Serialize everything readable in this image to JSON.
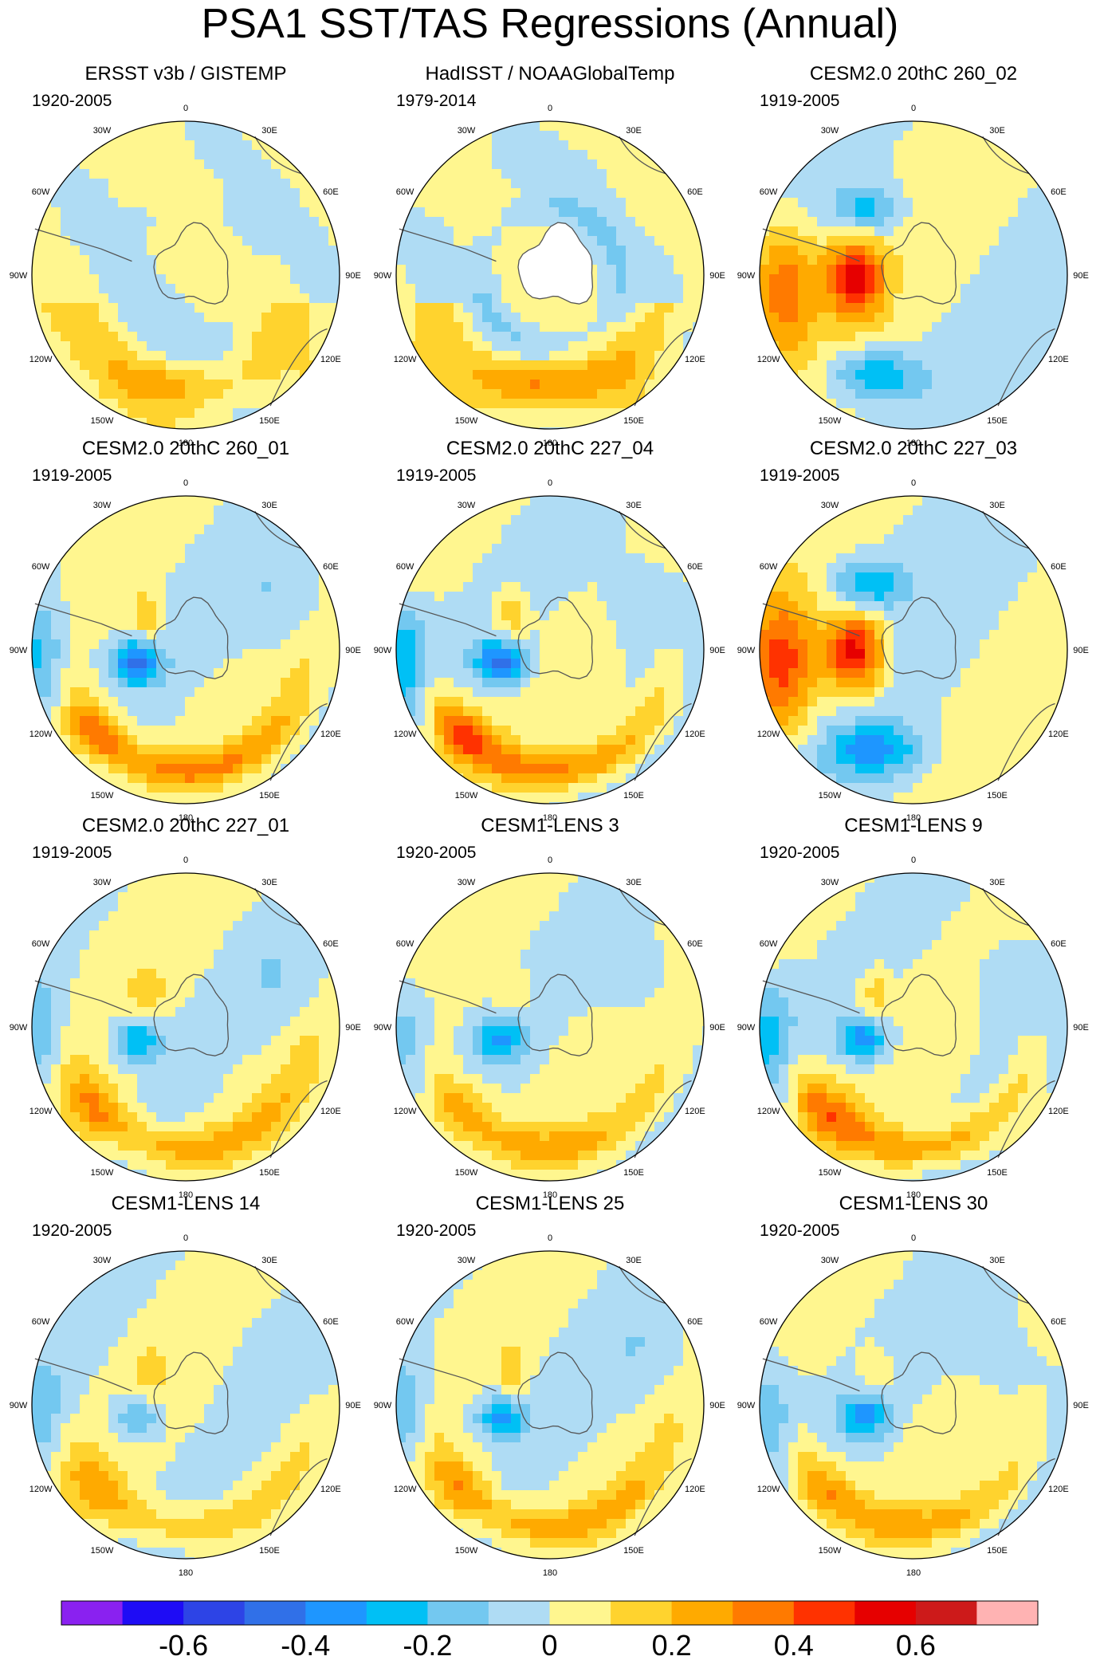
{
  "title": "PSA1 SST/TAS Regressions (Annual)",
  "chart_data": {
    "type": "polar-stereographic-contour-maps",
    "projection": "south polar stereographic",
    "longitude_labels": [
      "0",
      "30E",
      "60E",
      "90E",
      "120E",
      "150E",
      "180",
      "150W",
      "120W",
      "90W",
      "60W",
      "30W"
    ],
    "panels": [
      {
        "title": "ERSST v3b / GISTEMP",
        "period": "1920-2005",
        "pattern": "obs",
        "amplitude": 0.18,
        "missing_antarctic": true
      },
      {
        "title": "HadISST / NOAAGlobalTemp",
        "period": "1979-2014",
        "pattern": "obs",
        "amplitude": 0.3,
        "missing_antarctic": true,
        "pole_mask": true
      },
      {
        "title": "CESM2.0 20thC 260_02",
        "period": "1919-2005",
        "pattern": "strong_warm",
        "amplitude": 0.55
      },
      {
        "title": "CESM2.0 20thC 260_01",
        "period": "1919-2005",
        "pattern": "cool_core",
        "amplitude": 0.42
      },
      {
        "title": "CESM2.0 20thC 227_04",
        "period": "1919-2005",
        "pattern": "cool_core",
        "amplitude": 0.45
      },
      {
        "title": "CESM2.0 20thC 227_03",
        "period": "1919-2005",
        "pattern": "strong_warm",
        "amplitude": 0.6
      },
      {
        "title": "CESM2.0 20thC 227_01",
        "period": "1919-2005",
        "pattern": "cool_core",
        "amplitude": 0.32
      },
      {
        "title": "CESM1-LENS 3",
        "period": "1920-2005",
        "pattern": "cool_core",
        "amplitude": 0.3
      },
      {
        "title": "CESM1-LENS 9",
        "period": "1920-2005",
        "pattern": "cool_core",
        "amplitude": 0.38
      },
      {
        "title": "CESM1-LENS 14",
        "period": "1920-2005",
        "pattern": "cool_core",
        "amplitude": 0.24
      },
      {
        "title": "CESM1-LENS 25",
        "period": "1920-2005",
        "pattern": "cool_core",
        "amplitude": 0.33
      },
      {
        "title": "CESM1-LENS 30",
        "period": "1920-2005",
        "pattern": "cool_core",
        "amplitude": 0.33
      }
    ],
    "colorbar": {
      "levels": [
        -0.7,
        -0.6,
        -0.5,
        -0.4,
        -0.3,
        -0.2,
        -0.1,
        0,
        0.1,
        0.2,
        0.3,
        0.4,
        0.5,
        0.6,
        0.7
      ],
      "colors": [
        "#8a21f0",
        "#1e0cf5",
        "#2d44e6",
        "#3070e8",
        "#1e96ff",
        "#00c0f5",
        "#73c8f0",
        "#afdcf4",
        "#fff68f",
        "#ffd32e",
        "#ffaa00",
        "#ff7a00",
        "#ff3200",
        "#e60000",
        "#cd1a1a",
        "#ffb3b3"
      ],
      "tick_labels": [
        "-0.6",
        "-0.4",
        "-0.2",
        "0",
        "0.2",
        "0.4",
        "0.6"
      ],
      "tick_values": [
        -0.6,
        -0.4,
        -0.2,
        0,
        0.2,
        0.4,
        0.6
      ]
    }
  }
}
